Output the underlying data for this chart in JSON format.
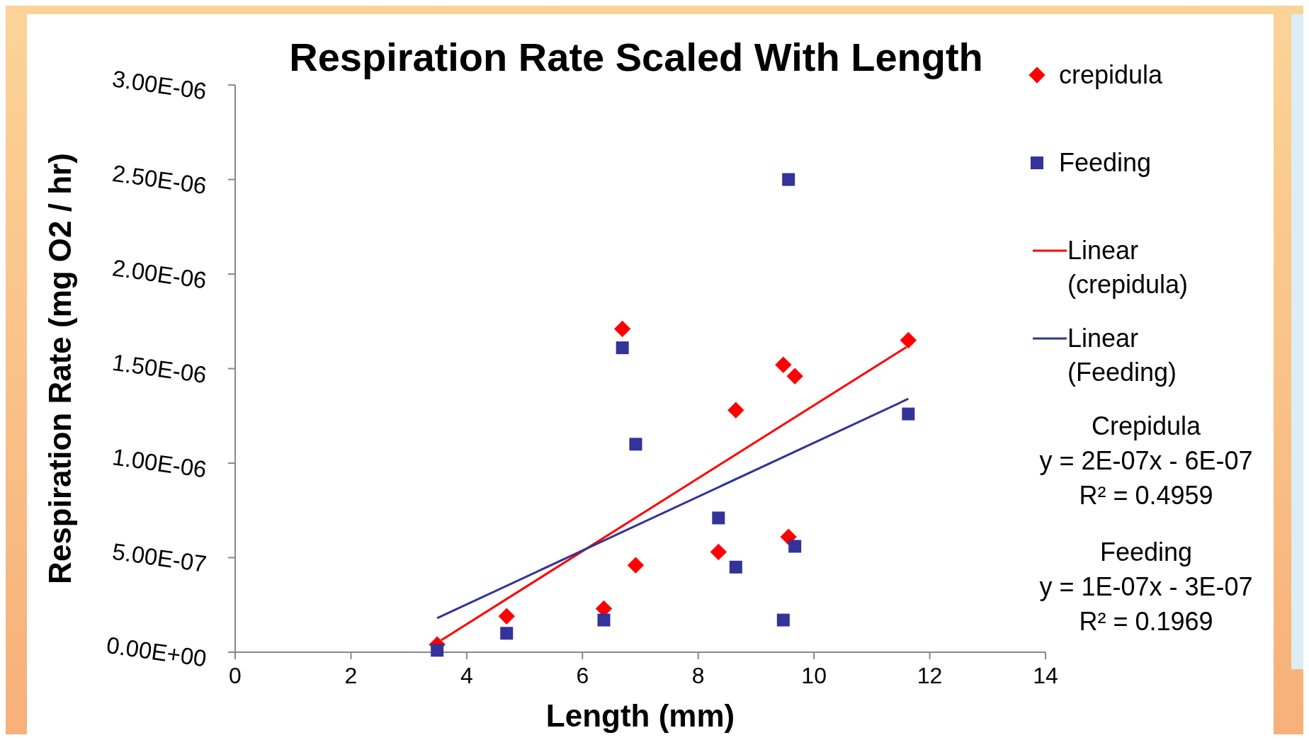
{
  "chart_data": {
    "type": "scatter",
    "title": "Respiration Rate Scaled With Length",
    "xlabel": "Length (mm)",
    "ylabel": "Respiration Rate (mg O2 / hr)",
    "xlim": [
      0,
      14
    ],
    "xticks": [
      0,
      2,
      4,
      6,
      8,
      10,
      12,
      14
    ],
    "ylim": [
      0,
      3e-06
    ],
    "yticks": [
      {
        "value": 0,
        "label": "0.00E+00"
      },
      {
        "value": 5e-07,
        "label": "5.00E-07"
      },
      {
        "value": 1e-06,
        "label": "1.00E-06"
      },
      {
        "value": 1.5e-06,
        "label": "1.50E-06"
      },
      {
        "value": 2e-06,
        "label": "2.00E-06"
      },
      {
        "value": 2.5e-06,
        "label": "2.50E-06"
      },
      {
        "value": 3e-06,
        "label": "3.00E-06"
      }
    ],
    "grid": false,
    "legend": "right",
    "series": [
      {
        "name": "crepidula",
        "marker": "diamond",
        "color": "#ff0000",
        "x": [
          3.49,
          4.69,
          6.37,
          6.69,
          6.92,
          8.35,
          8.65,
          9.47,
          9.56,
          9.67,
          11.63
        ],
        "values": [
          4e-08,
          1.9e-07,
          2.3e-07,
          1.71e-06,
          4.6e-07,
          5.3e-07,
          1.28e-06,
          1.52e-06,
          6.1e-07,
          1.46e-06,
          1.65e-06
        ]
      },
      {
        "name": "Feeding",
        "marker": "square",
        "color": "#333399",
        "x": [
          3.49,
          4.69,
          6.37,
          6.69,
          6.92,
          8.35,
          8.65,
          9.47,
          9.56,
          9.67,
          11.63
        ],
        "values": [
          1e-08,
          1e-07,
          1.7e-07,
          1.61e-06,
          1.1e-06,
          7.1e-07,
          4.5e-07,
          1.7e-07,
          2.5e-06,
          5.6e-07,
          1.26e-06
        ]
      },
      {
        "name": "Linear (crepidula)",
        "type": "line",
        "color": "#ff0000",
        "x": [
          3.49,
          11.63
        ],
        "values": [
          5e-08,
          1.62e-06
        ]
      },
      {
        "name": "Linear (Feeding)",
        "type": "line",
        "color": "#333399",
        "x": [
          3.49,
          11.63
        ],
        "values": [
          1.8e-07,
          1.34e-06
        ]
      }
    ],
    "annotations": [
      "Crepidula\ny = 2E-07x - 6E-07\nR² = 0.4959",
      "Feeding\ny = 1E-07x - 3E-07\nR² = 0.1969"
    ]
  }
}
